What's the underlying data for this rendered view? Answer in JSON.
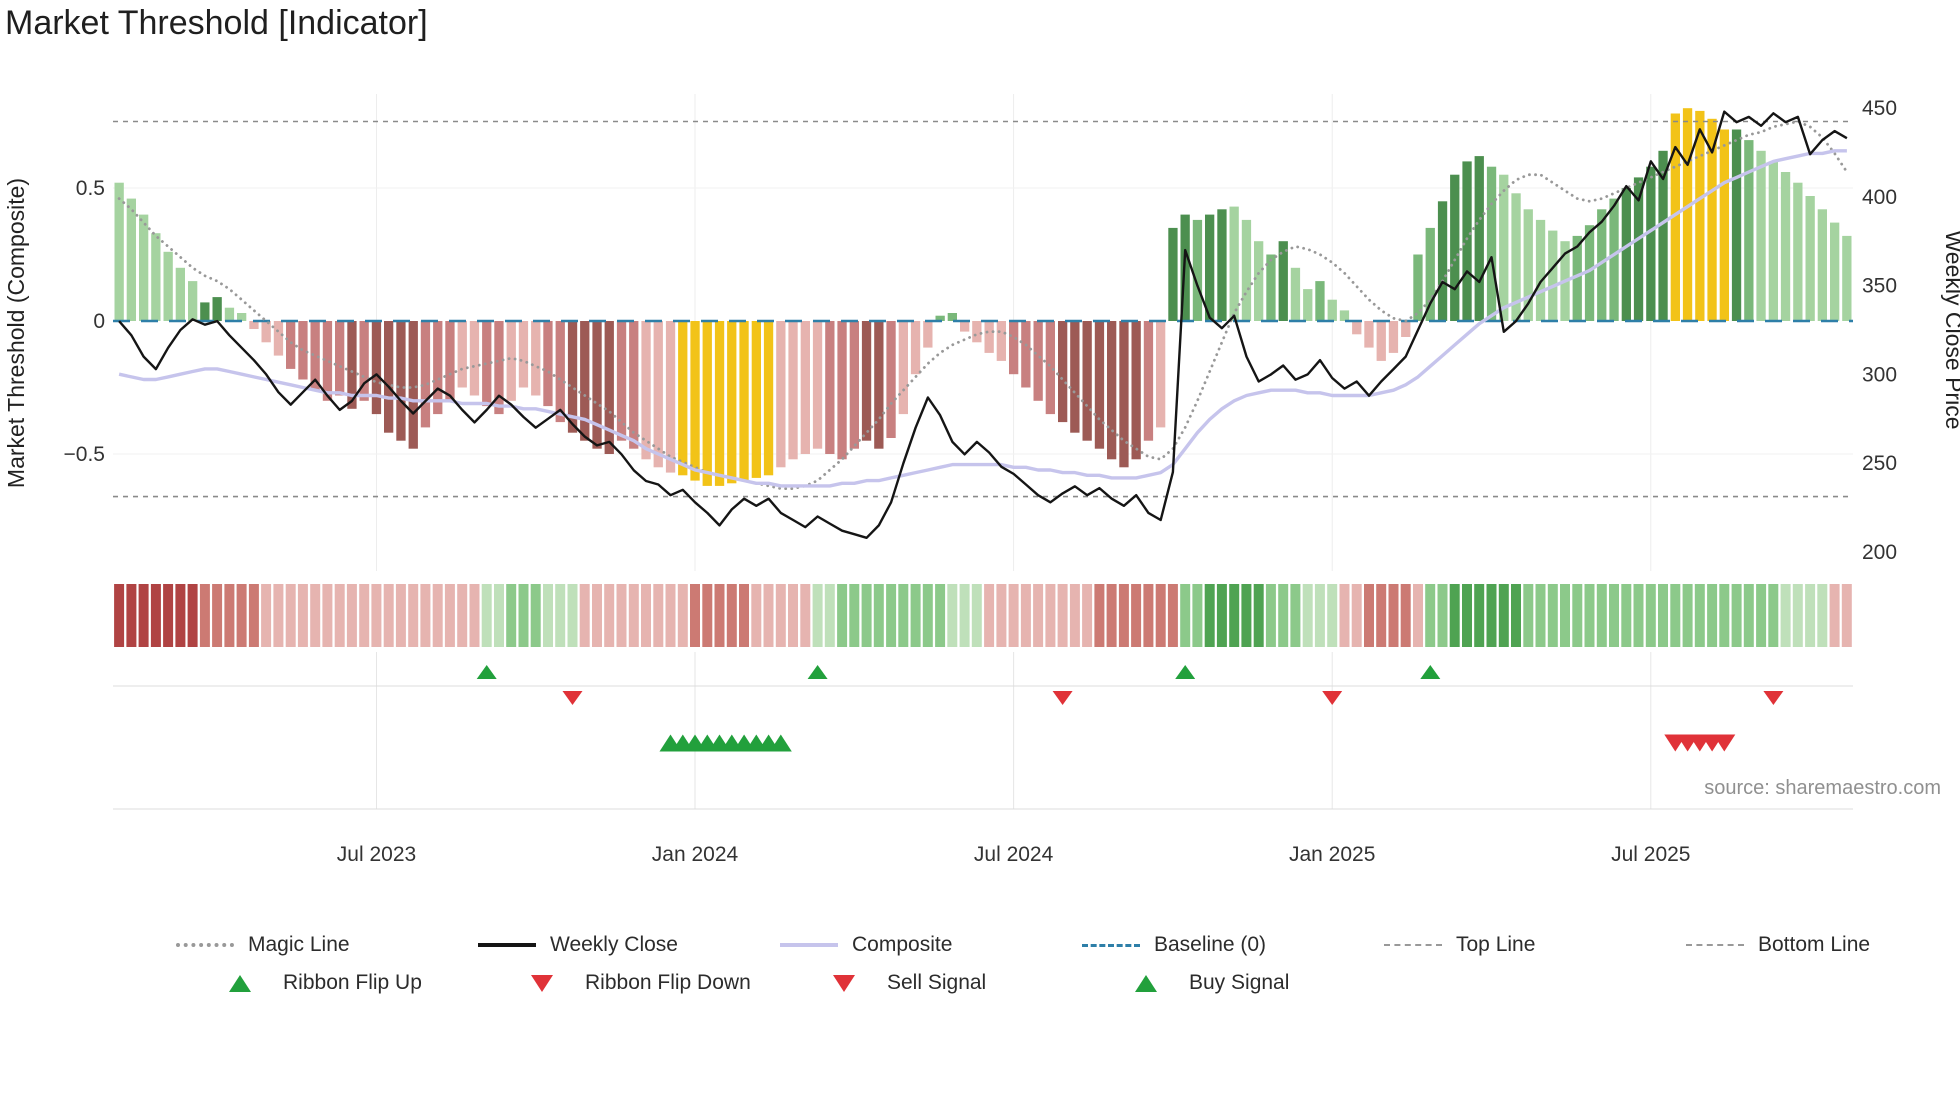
{
  "title": "Market Threshold [Indicator]",
  "palette": {
    "bars": {
      "G1": "#a5d3a0",
      "G2": "#7ab87a",
      "G3": "#4c8f4f",
      "Y": "#f2c318",
      "R1": "#e6b3af",
      "R2": "#c88080",
      "R3": "#9d5a55"
    },
    "ribbon": {
      "G1": "#bfe0ba",
      "G2": "#8cc98a",
      "G3": "#4fa352",
      "R1": "#e6b4b0",
      "R2": "#cc7a73",
      "R3": "#b04343"
    },
    "lines": {
      "magic": "#999999",
      "weekly_close": "#151515",
      "composite": "#c6c4ec",
      "baseline": "#2e7fa8",
      "ref": "#8a8a8a"
    },
    "signals": {
      "up": "#22a03c",
      "down": "#e03238"
    },
    "grid": "#ededed",
    "text": "#333333"
  },
  "chart_data": {
    "type": "mixed",
    "title": "Market Threshold [Indicator]",
    "ylabel_left": "Market Threshold (Composite)",
    "ylabel_right": "Weekly Close Price",
    "source_text": "source: sharemaestro.com",
    "grid": true,
    "legend_position": "bottom",
    "ylim_left": [
      -0.94,
      0.85
    ],
    "ylim_right": [
      189,
      458
    ],
    "top_line": 0.75,
    "bottom_line": -0.66,
    "baseline": 0,
    "yticks_left": [
      {
        "value": 0.5,
        "label": "0.5"
      },
      {
        "value": 0,
        "label": "0"
      },
      {
        "value": -0.5,
        "label": "−0.5"
      }
    ],
    "yticks_right": [
      450,
      400,
      350,
      300,
      250,
      200
    ],
    "x_ticks": [
      {
        "index": 21,
        "label": "Jul 2023"
      },
      {
        "index": 47,
        "label": "Jan 2024"
      },
      {
        "index": 73,
        "label": "Jul 2024"
      },
      {
        "index": 99,
        "label": "Jan 2025"
      },
      {
        "index": 125,
        "label": "Jul 2025"
      }
    ],
    "n_weeks": 142,
    "bars": {
      "values": [
        0.52,
        0.46,
        0.4,
        0.33,
        0.26,
        0.2,
        0.15,
        0.07,
        0.09,
        0.05,
        0.03,
        -0.03,
        -0.08,
        -0.13,
        -0.18,
        -0.22,
        -0.26,
        -0.3,
        -0.28,
        -0.33,
        -0.3,
        -0.35,
        -0.42,
        -0.45,
        -0.48,
        -0.4,
        -0.35,
        -0.3,
        -0.25,
        -0.28,
        -0.32,
        -0.35,
        -0.3,
        -0.25,
        -0.28,
        -0.32,
        -0.38,
        -0.42,
        -0.45,
        -0.48,
        -0.5,
        -0.45,
        -0.48,
        -0.52,
        -0.55,
        -0.57,
        -0.58,
        -0.6,
        -0.62,
        -0.62,
        -0.61,
        -0.6,
        -0.59,
        -0.58,
        -0.55,
        -0.52,
        -0.5,
        -0.48,
        -0.5,
        -0.52,
        -0.48,
        -0.45,
        -0.48,
        -0.44,
        -0.35,
        -0.2,
        -0.1,
        0.02,
        0.03,
        -0.04,
        -0.08,
        -0.12,
        -0.15,
        -0.2,
        -0.25,
        -0.3,
        -0.35,
        -0.38,
        -0.42,
        -0.45,
        -0.48,
        -0.52,
        -0.55,
        -0.52,
        -0.45,
        -0.4,
        0.35,
        0.4,
        0.38,
        0.4,
        0.42,
        0.43,
        0.38,
        0.3,
        0.25,
        0.3,
        0.2,
        0.12,
        0.15,
        0.08,
        0.04,
        -0.05,
        -0.1,
        -0.15,
        -0.12,
        -0.06,
        0.25,
        0.35,
        0.45,
        0.55,
        0.6,
        0.62,
        0.58,
        0.55,
        0.48,
        0.42,
        0.38,
        0.34,
        0.3,
        0.32,
        0.36,
        0.42,
        0.46,
        0.5,
        0.54,
        0.58,
        0.64,
        0.78,
        0.8,
        0.79,
        0.76,
        0.72,
        0.72,
        0.68,
        0.64,
        0.6,
        0.56,
        0.52,
        0.47,
        0.42,
        0.37,
        0.32
      ],
      "colors": [
        "G1",
        "G1",
        "G1",
        "G1",
        "G1",
        "G1",
        "G1",
        "G3",
        "G3",
        "G1",
        "G1",
        "R1",
        "R1",
        "R1",
        "R2",
        "R2",
        "R2",
        "R2",
        "R2",
        "R3",
        "R2",
        "R3",
        "R3",
        "R3",
        "R3",
        "R2",
        "R2",
        "R2",
        "R1",
        "R1",
        "R2",
        "R2",
        "R1",
        "R1",
        "R1",
        "R2",
        "R2",
        "R3",
        "R3",
        "R3",
        "R3",
        "R2",
        "R2",
        "R1",
        "R1",
        "R1",
        "Y",
        "Y",
        "Y",
        "Y",
        "Y",
        "Y",
        "Y",
        "Y",
        "R1",
        "R1",
        "R1",
        "R1",
        "R2",
        "R2",
        "R2",
        "R3",
        "R3",
        "R2",
        "R1",
        "R1",
        "R1",
        "G2",
        "G2",
        "R1",
        "R1",
        "R1",
        "R1",
        "R2",
        "R2",
        "R2",
        "R2",
        "R3",
        "R3",
        "R3",
        "R3",
        "R3",
        "R3",
        "R3",
        "R2",
        "R1",
        "G3",
        "G3",
        "G2",
        "G3",
        "G3",
        "G1",
        "G1",
        "G1",
        "G2",
        "G3",
        "G1",
        "G1",
        "G2",
        "G1",
        "G1",
        "R1",
        "R1",
        "R1",
        "R1",
        "R1",
        "G2",
        "G2",
        "G3",
        "G3",
        "G3",
        "G3",
        "G2",
        "G1",
        "G1",
        "G1",
        "G1",
        "G1",
        "G1",
        "G2",
        "G2",
        "G2",
        "G2",
        "G3",
        "G3",
        "G3",
        "G3",
        "Y",
        "Y",
        "Y",
        "Y",
        "Y",
        "G3",
        "G2",
        "G1",
        "G1",
        "G1",
        "G1",
        "G1",
        "G1",
        "G1",
        "G1"
      ]
    },
    "weekly_close": [
      330,
      322,
      310,
      303,
      315,
      325,
      331,
      328,
      330,
      322,
      315,
      308,
      300,
      290,
      283,
      290,
      297,
      288,
      280,
      285,
      295,
      300,
      293,
      285,
      278,
      285,
      292,
      288,
      280,
      273,
      280,
      288,
      283,
      276,
      270,
      275,
      280,
      272,
      265,
      260,
      262,
      255,
      246,
      240,
      238,
      232,
      235,
      228,
      222,
      215,
      224,
      230,
      226,
      230,
      222,
      218,
      214,
      220,
      216,
      212,
      210,
      208,
      215,
      228,
      250,
      270,
      287,
      277,
      262,
      255,
      262,
      256,
      248,
      244,
      238,
      232,
      228,
      233,
      237,
      232,
      236,
      230,
      226,
      232,
      222,
      218,
      245,
      370,
      350,
      332,
      326,
      333,
      310,
      296,
      300,
      305,
      297,
      300,
      308,
      298,
      292,
      296,
      288,
      296,
      303,
      310,
      325,
      340,
      352,
      348,
      358,
      352,
      366,
      324,
      330,
      340,
      352,
      360,
      368,
      372,
      380,
      386,
      395,
      406,
      398,
      420,
      410,
      428,
      418,
      438,
      425,
      448,
      442,
      445,
      440,
      447,
      442,
      445,
      424,
      432,
      437,
      433
    ],
    "composite": [
      -0.2,
      -0.21,
      -0.22,
      -0.22,
      -0.21,
      -0.2,
      -0.19,
      -0.18,
      -0.18,
      -0.19,
      -0.2,
      -0.21,
      -0.22,
      -0.23,
      -0.24,
      -0.25,
      -0.26,
      -0.27,
      -0.27,
      -0.28,
      -0.28,
      -0.28,
      -0.29,
      -0.29,
      -0.3,
      -0.3,
      -0.3,
      -0.3,
      -0.31,
      -0.31,
      -0.31,
      -0.32,
      -0.32,
      -0.33,
      -0.33,
      -0.34,
      -0.35,
      -0.36,
      -0.37,
      -0.39,
      -0.41,
      -0.43,
      -0.45,
      -0.48,
      -0.5,
      -0.52,
      -0.54,
      -0.56,
      -0.57,
      -0.58,
      -0.59,
      -0.6,
      -0.61,
      -0.61,
      -0.62,
      -0.62,
      -0.62,
      -0.62,
      -0.62,
      -0.61,
      -0.61,
      -0.6,
      -0.6,
      -0.59,
      -0.58,
      -0.57,
      -0.56,
      -0.55,
      -0.54,
      -0.54,
      -0.54,
      -0.54,
      -0.54,
      -0.55,
      -0.55,
      -0.56,
      -0.56,
      -0.57,
      -0.57,
      -0.58,
      -0.58,
      -0.59,
      -0.59,
      -0.59,
      -0.58,
      -0.57,
      -0.54,
      -0.48,
      -0.42,
      -0.37,
      -0.33,
      -0.3,
      -0.28,
      -0.27,
      -0.26,
      -0.26,
      -0.26,
      -0.27,
      -0.27,
      -0.28,
      -0.28,
      -0.28,
      -0.28,
      -0.27,
      -0.26,
      -0.24,
      -0.21,
      -0.17,
      -0.13,
      -0.09,
      -0.05,
      -0.01,
      0.02,
      0.05,
      0.07,
      0.09,
      0.11,
      0.13,
      0.15,
      0.17,
      0.19,
      0.22,
      0.25,
      0.28,
      0.31,
      0.34,
      0.37,
      0.4,
      0.43,
      0.46,
      0.49,
      0.52,
      0.54,
      0.56,
      0.58,
      0.6,
      0.61,
      0.62,
      0.63,
      0.63,
      0.64,
      0.64
    ],
    "magic_line": [
      0.46,
      0.42,
      0.37,
      0.32,
      0.28,
      0.24,
      0.2,
      0.17,
      0.15,
      0.12,
      0.08,
      0.04,
      0.0,
      -0.04,
      -0.08,
      -0.11,
      -0.13,
      -0.15,
      -0.17,
      -0.19,
      -0.21,
      -0.23,
      -0.24,
      -0.25,
      -0.25,
      -0.24,
      -0.22,
      -0.2,
      -0.18,
      -0.17,
      -0.16,
      -0.15,
      -0.14,
      -0.15,
      -0.17,
      -0.19,
      -0.22,
      -0.25,
      -0.28,
      -0.31,
      -0.34,
      -0.38,
      -0.42,
      -0.45,
      -0.48,
      -0.51,
      -0.53,
      -0.55,
      -0.57,
      -0.58,
      -0.59,
      -0.6,
      -0.61,
      -0.62,
      -0.63,
      -0.63,
      -0.62,
      -0.6,
      -0.56,
      -0.52,
      -0.47,
      -0.42,
      -0.37,
      -0.31,
      -0.26,
      -0.21,
      -0.16,
      -0.12,
      -0.09,
      -0.07,
      -0.05,
      -0.04,
      -0.04,
      -0.06,
      -0.09,
      -0.13,
      -0.17,
      -0.22,
      -0.27,
      -0.32,
      -0.37,
      -0.41,
      -0.45,
      -0.48,
      -0.51,
      -0.52,
      -0.48,
      -0.4,
      -0.3,
      -0.19,
      -0.08,
      0.03,
      0.11,
      0.18,
      0.23,
      0.26,
      0.28,
      0.27,
      0.25,
      0.22,
      0.18,
      0.13,
      0.08,
      0.04,
      0.01,
      0.0,
      0.03,
      0.08,
      0.15,
      0.23,
      0.31,
      0.38,
      0.44,
      0.49,
      0.53,
      0.55,
      0.55,
      0.52,
      0.49,
      0.46,
      0.45,
      0.46,
      0.48,
      0.5,
      0.52,
      0.54,
      0.56,
      0.58,
      0.6,
      0.62,
      0.64,
      0.66,
      0.68,
      0.7,
      0.71,
      0.73,
      0.74,
      0.75,
      0.73,
      0.69,
      0.63,
      0.56
    ],
    "ribbon": [
      "R3",
      "R3",
      "R3",
      "R3",
      "R3",
      "R3",
      "R3",
      "R2",
      "R2",
      "R2",
      "R2",
      "R2",
      "R1",
      "R1",
      "R1",
      "R1",
      "R1",
      "R1",
      "R1",
      "R1",
      "R1",
      "R1",
      "R1",
      "R1",
      "R1",
      "R1",
      "R1",
      "R1",
      "R1",
      "R1",
      "G1",
      "G1",
      "G2",
      "G2",
      "G2",
      "G1",
      "G1",
      "G1",
      "R1",
      "R1",
      "R1",
      "R1",
      "R1",
      "R1",
      "R1",
      "R1",
      "R1",
      "R2",
      "R2",
      "R2",
      "R2",
      "R2",
      "R1",
      "R1",
      "R1",
      "R1",
      "R1",
      "G1",
      "G1",
      "G2",
      "G2",
      "G2",
      "G2",
      "G2",
      "G2",
      "G2",
      "G2",
      "G2",
      "G1",
      "G1",
      "G1",
      "R1",
      "R1",
      "R1",
      "R1",
      "R1",
      "R1",
      "R1",
      "R1",
      "R1",
      "R2",
      "R2",
      "R2",
      "R2",
      "R2",
      "R2",
      "R2",
      "G2",
      "G2",
      "G3",
      "G3",
      "G3",
      "G3",
      "G3",
      "G2",
      "G2",
      "G2",
      "G1",
      "G1",
      "G1",
      "R1",
      "R1",
      "R2",
      "R2",
      "R2",
      "R2",
      "R1",
      "G2",
      "G2",
      "G3",
      "G3",
      "G3",
      "G3",
      "G3",
      "G3",
      "G2",
      "G2",
      "G2",
      "G2",
      "G2",
      "G2",
      "G2",
      "G2",
      "G2",
      "G2",
      "G2",
      "G2",
      "G2",
      "G2",
      "G2",
      "G2",
      "G2",
      "G2",
      "G2",
      "G2",
      "G2",
      "G1",
      "G1",
      "G1",
      "G1",
      "R1",
      "R1"
    ],
    "signals": {
      "ribbon_flip_up": [
        30,
        57,
        87,
        107
      ],
      "ribbon_flip_down": [
        37,
        77,
        99,
        135
      ],
      "buy": [
        45,
        46,
        47,
        48,
        49,
        50,
        51,
        52,
        53,
        54
      ],
      "sell": [
        127,
        128,
        129,
        130,
        131
      ]
    }
  },
  "legend": {
    "row1": [
      {
        "label": "Magic Line",
        "type": "dotted",
        "color": "#999999"
      },
      {
        "label": "Weekly Close",
        "type": "solid",
        "color": "#151515"
      },
      {
        "label": "Composite",
        "type": "solid",
        "color": "#c6c4ec"
      },
      {
        "label": "Baseline (0)",
        "type": "dashed",
        "color": "#2e7fa8"
      },
      {
        "label": "Top Line",
        "type": "dashed-short",
        "color": "#999999"
      },
      {
        "label": "Bottom Line",
        "type": "dashed-short",
        "color": "#999999"
      }
    ],
    "row2": [
      {
        "label": "Ribbon Flip Up",
        "type": "tri-up",
        "color": "#22a03c"
      },
      {
        "label": "Ribbon Flip Down",
        "type": "tri-down",
        "color": "#e03238"
      },
      {
        "label": "Sell Signal",
        "type": "tri-down",
        "color": "#e03238"
      },
      {
        "label": "Buy Signal",
        "type": "tri-up",
        "color": "#22a03c"
      }
    ]
  }
}
